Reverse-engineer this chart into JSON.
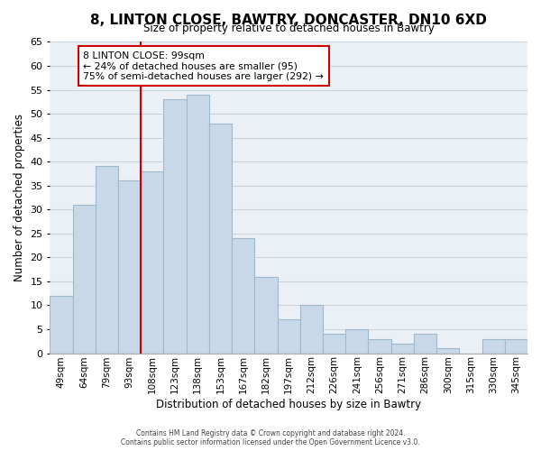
{
  "title": "8, LINTON CLOSE, BAWTRY, DONCASTER, DN10 6XD",
  "subtitle": "Size of property relative to detached houses in Bawtry",
  "xlabel": "Distribution of detached houses by size in Bawtry",
  "ylabel": "Number of detached properties",
  "bar_labels": [
    "49sqm",
    "64sqm",
    "79sqm",
    "93sqm",
    "108sqm",
    "123sqm",
    "138sqm",
    "153sqm",
    "167sqm",
    "182sqm",
    "197sqm",
    "212sqm",
    "226sqm",
    "241sqm",
    "256sqm",
    "271sqm",
    "286sqm",
    "300sqm",
    "315sqm",
    "330sqm",
    "345sqm"
  ],
  "bar_values": [
    12,
    31,
    39,
    36,
    38,
    53,
    54,
    48,
    24,
    16,
    7,
    10,
    4,
    5,
    3,
    2,
    4,
    1,
    0,
    3,
    3
  ],
  "bar_color": "#c8d8e8",
  "bar_edge_color": "#a0b8cc",
  "vline_pos": 3.5,
  "vline_color": "#cc0000",
  "ylim": [
    0,
    65
  ],
  "yticks": [
    0,
    5,
    10,
    15,
    20,
    25,
    30,
    35,
    40,
    45,
    50,
    55,
    60,
    65
  ],
  "annotation_title": "8 LINTON CLOSE: 99sqm",
  "annotation_line1": "← 24% of detached houses are smaller (95)",
  "annotation_line2": "75% of semi-detached houses are larger (292) →",
  "box_color": "#ffffff",
  "box_edge_color": "#cc0000",
  "footer1": "Contains HM Land Registry data © Crown copyright and database right 2024.",
  "footer2": "Contains public sector information licensed under the Open Government Licence v3.0.",
  "background_color": "#ffffff",
  "axes_bg_color": "#eaf0f6",
  "grid_color": "#c8d4dc"
}
